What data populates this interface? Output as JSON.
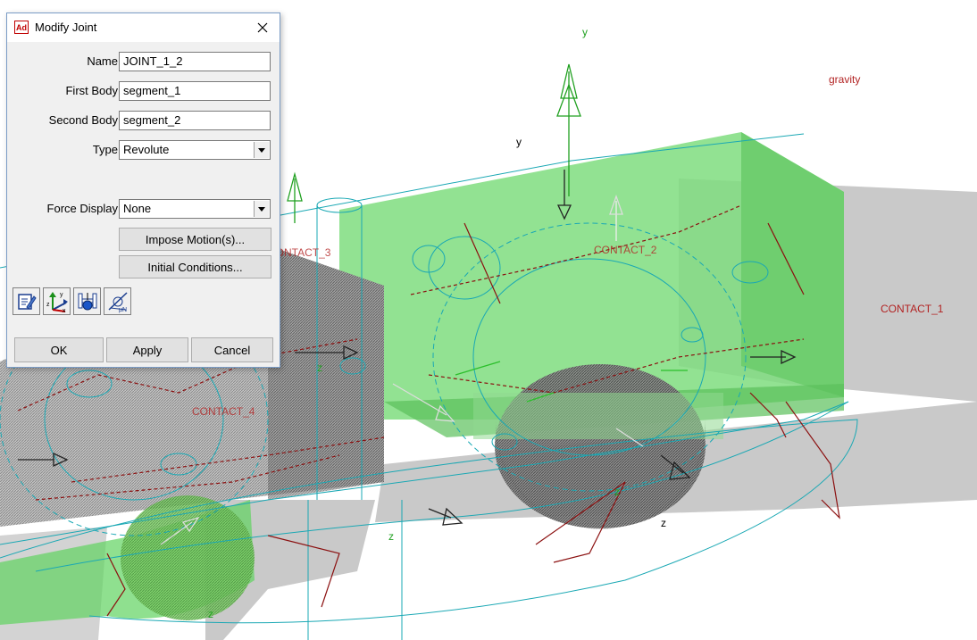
{
  "viewport": {
    "axis_labels": [
      "y",
      "y",
      "z",
      "z",
      "z",
      "z",
      "z"
    ],
    "gravity_label": "gravity",
    "contact_labels": [
      "CONTACT_1",
      "CONTACT_2",
      "CONTACT_3",
      "CONTACT_4"
    ],
    "colors": {
      "wireframe_cyan": "#1aa8b4",
      "body_green": "#5fd35f",
      "shadow_gray": "#c8c8c8",
      "marker_darkred": "#8b1010",
      "axis_green": "#20a020",
      "label_red": "#b22222"
    }
  },
  "dialog": {
    "title": "Modify Joint",
    "app_icon_text": "Ad",
    "fields": {
      "name_label": "Name",
      "name_value": "JOINT_1_2",
      "first_body_label": "First Body",
      "first_body_value": "segment_1",
      "second_body_label": "Second Body",
      "second_body_value": "segment_2",
      "type_label": "Type",
      "type_value": "Revolute",
      "force_display_label": "Force Display",
      "force_display_value": "None"
    },
    "buttons": {
      "impose_motion": "Impose Motion(s)...",
      "initial_conditions": "Initial Conditions...",
      "ok": "OK",
      "apply": "Apply",
      "cancel": "Cancel"
    },
    "tool_icons": [
      "edit-properties-icon",
      "coordinate-axes-icon",
      "joint-primitive-icon",
      "friction-icon"
    ]
  }
}
